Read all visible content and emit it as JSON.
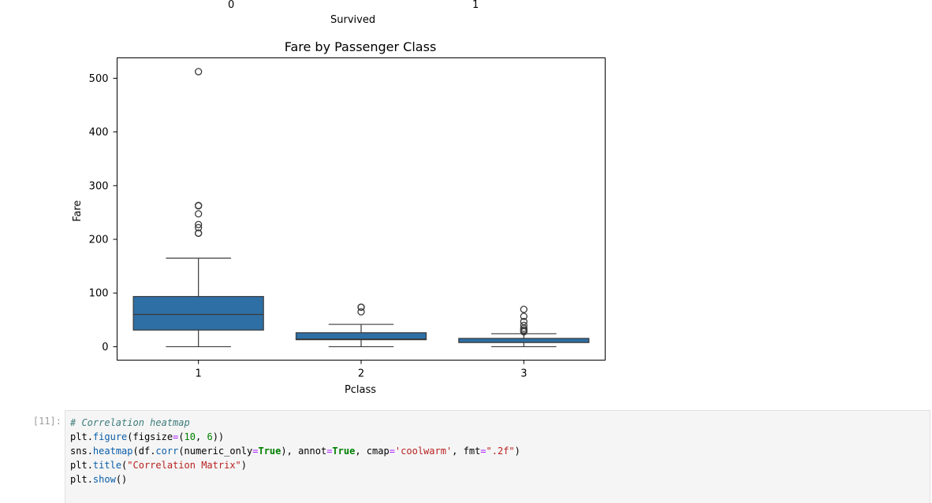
{
  "previous_output": {
    "tick_labels": [
      "0",
      "1"
    ],
    "xlabel": "Survived"
  },
  "chart_data": {
    "type": "box",
    "title": "Fare by Passenger Class",
    "xlabel": "Pclass",
    "ylabel": "Fare",
    "categories": [
      "1",
      "2",
      "3"
    ],
    "yticks": [
      0,
      100,
      200,
      300,
      400,
      500
    ],
    "ylim": [
      -25,
      538
    ],
    "grid": false,
    "color": "#2e6fa5",
    "boxes": [
      {
        "category": "1",
        "whisker_low": 0,
        "q1": 31,
        "median": 60,
        "q3": 93.5,
        "whisker_high": 164.9,
        "outliers": [
          211.3,
          211.5,
          221.8,
          227.5,
          247.5,
          262.4,
          263,
          512.3
        ]
      },
      {
        "category": "2",
        "whisker_low": 0,
        "q1": 13,
        "median": 14.25,
        "q3": 26,
        "whisker_high": 41.6,
        "outliers": [
          65,
          73.5,
          73.5
        ]
      },
      {
        "category": "3",
        "whisker_low": 0,
        "q1": 7.75,
        "median": 8.05,
        "q3": 15.5,
        "whisker_high": 24.2,
        "outliers": [
          27.9,
          29.1,
          31.3,
          34.4,
          39.7,
          46.9,
          56.5,
          69.6
        ]
      }
    ]
  },
  "cell": {
    "prompt": "[11]:",
    "lines": [
      [
        {
          "t": "# Correlation heatmap",
          "c": "comment"
        }
      ],
      [
        {
          "t": "plt",
          "c": "name"
        },
        {
          "t": ".",
          "c": "name"
        },
        {
          "t": "figure",
          "c": "attr"
        },
        {
          "t": "(figsize",
          "c": "name"
        },
        {
          "t": "=",
          "c": "op"
        },
        {
          "t": "(",
          "c": "name"
        },
        {
          "t": "10",
          "c": "num"
        },
        {
          "t": ", ",
          "c": "name"
        },
        {
          "t": "6",
          "c": "num"
        },
        {
          "t": "))",
          "c": "name"
        }
      ],
      [
        {
          "t": "sns",
          "c": "name"
        },
        {
          "t": ".",
          "c": "name"
        },
        {
          "t": "heatmap",
          "c": "attr"
        },
        {
          "t": "(df",
          "c": "name"
        },
        {
          "t": ".",
          "c": "name"
        },
        {
          "t": "corr",
          "c": "attr"
        },
        {
          "t": "(numeric_only",
          "c": "name"
        },
        {
          "t": "=",
          "c": "op"
        },
        {
          "t": "True",
          "c": "kw"
        },
        {
          "t": "), annot",
          "c": "name"
        },
        {
          "t": "=",
          "c": "op"
        },
        {
          "t": "True",
          "c": "kw"
        },
        {
          "t": ", cmap",
          "c": "name"
        },
        {
          "t": "=",
          "c": "op"
        },
        {
          "t": "'coolwarm'",
          "c": "str"
        },
        {
          "t": ", fmt",
          "c": "name"
        },
        {
          "t": "=",
          "c": "op"
        },
        {
          "t": "\".2f\"",
          "c": "str"
        },
        {
          "t": ")",
          "c": "name"
        }
      ],
      [
        {
          "t": "plt",
          "c": "name"
        },
        {
          "t": ".",
          "c": "name"
        },
        {
          "t": "title",
          "c": "attr"
        },
        {
          "t": "(",
          "c": "name"
        },
        {
          "t": "\"Correlation Matrix\"",
          "c": "str"
        },
        {
          "t": ")",
          "c": "name"
        }
      ],
      [
        {
          "t": "plt",
          "c": "name"
        },
        {
          "t": ".",
          "c": "name"
        },
        {
          "t": "show",
          "c": "attr"
        },
        {
          "t": "()",
          "c": "name"
        }
      ]
    ]
  }
}
